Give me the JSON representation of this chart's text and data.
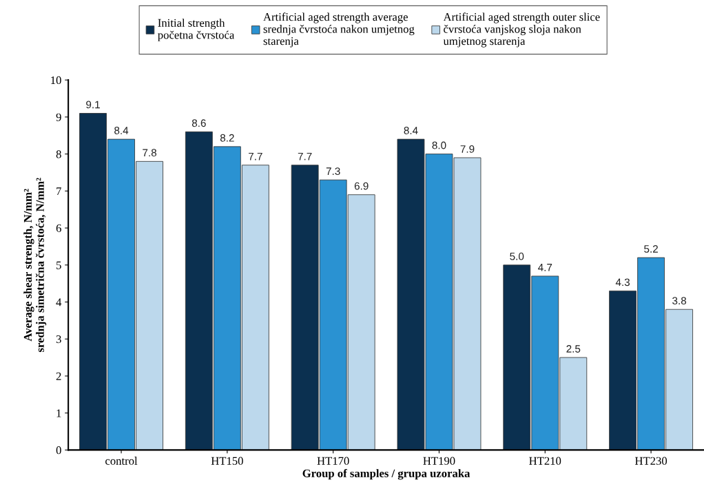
{
  "chart_data": {
    "type": "bar",
    "xlabel": "Group of samples / grupa uzoraka",
    "ylabel": "Average shear strength, N/mm²\nsrednja simetrična čvrstoća, N/mm²",
    "categories": [
      "control",
      "HT150",
      "HT170",
      "HT190",
      "HT210",
      "HT230"
    ],
    "series": [
      {
        "name": "Initial strength\npočetna čvrstoća",
        "color": "#0b3050",
        "values": [
          9.1,
          8.6,
          7.7,
          8.4,
          5.0,
          4.3
        ],
        "value_labels": [
          "9.1",
          "8.6",
          "7.7",
          "8.4",
          "5.0",
          "4.3"
        ]
      },
      {
        "name": "Artificial aged strength average\nsrednja čvrstoća nakon umjetnog\nstarenja",
        "color": "#2a92d2",
        "values": [
          8.4,
          8.2,
          7.3,
          8.0,
          4.7,
          5.2
        ],
        "value_labels": [
          "8.4",
          "8.2",
          "7.3",
          "8.0",
          "4.7",
          "5.2"
        ]
      },
      {
        "name": "Artificial aged strength outer slice\nčvrstoća vanjskog sloja nakon\numjetnog starenja",
        "color": "#bcd8ec",
        "values": [
          7.8,
          7.7,
          6.9,
          7.9,
          2.5,
          3.8
        ],
        "value_labels": [
          "7.8",
          "7.7",
          "6.9",
          "7.9",
          "2.5",
          "3.8"
        ]
      }
    ],
    "ylim": [
      0,
      10
    ],
    "yticks": [
      0,
      1,
      2,
      3,
      4,
      5,
      6,
      7,
      8,
      9,
      10
    ],
    "grid": false,
    "legend": "top"
  }
}
